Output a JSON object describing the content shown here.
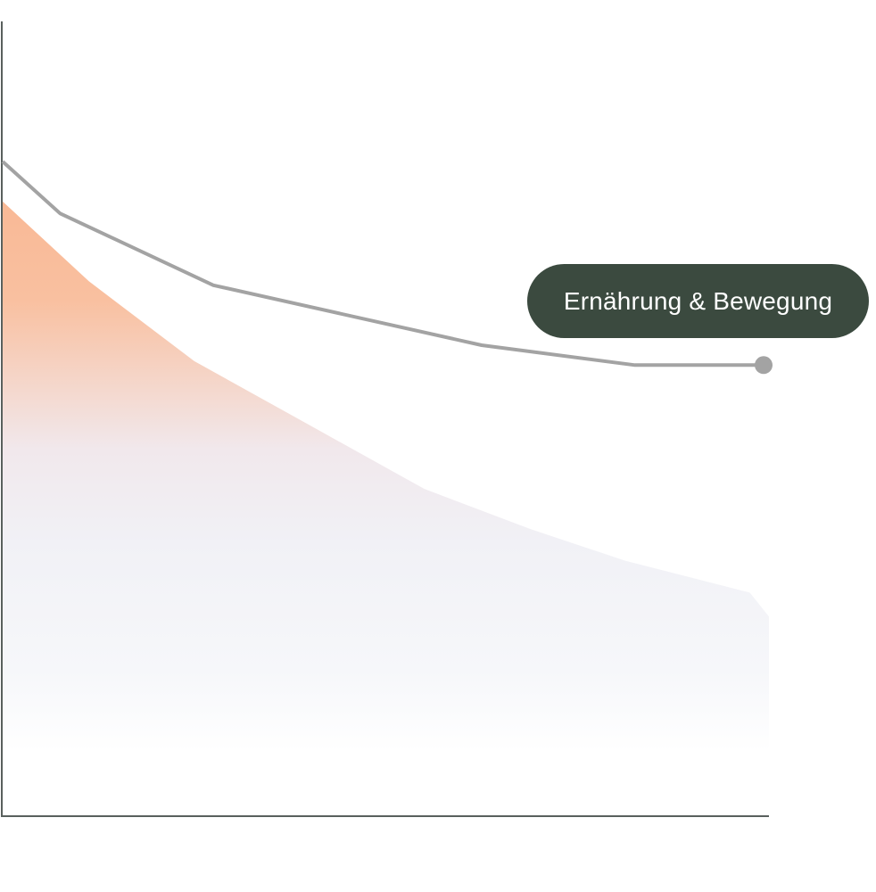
{
  "chart_data": {
    "type": "line",
    "x": [
      0,
      1,
      2,
      3,
      4,
      5,
      6,
      7,
      8
    ],
    "series": [
      {
        "name": "Ernährung & Bewegung",
        "style": "line",
        "color": "#a3a3a3",
        "values": [
          82,
          75.5,
          66.5,
          59,
          56.5,
          56.5
        ],
        "x": [
          0,
          0.6,
          2.2,
          5,
          6.6,
          8
        ]
      },
      {
        "style": "area",
        "color_top": "#f9b996",
        "color_bottom": "#f3f4f8",
        "values": [
          77,
          67,
          57,
          49,
          41,
          36,
          32,
          28,
          25
        ],
        "x": [
          0,
          0.9,
          2,
          3.2,
          4.4,
          5.5,
          6.5,
          7.8,
          8
        ]
      }
    ],
    "xlim": [
      0,
      8
    ],
    "ylim": [
      0,
      100
    ],
    "axis_color": "#59605d",
    "grid": false,
    "label_bg_color": "#3b4a3f",
    "label_text_color": "#ffffff",
    "end_marker_color": "#a3a3a3"
  }
}
